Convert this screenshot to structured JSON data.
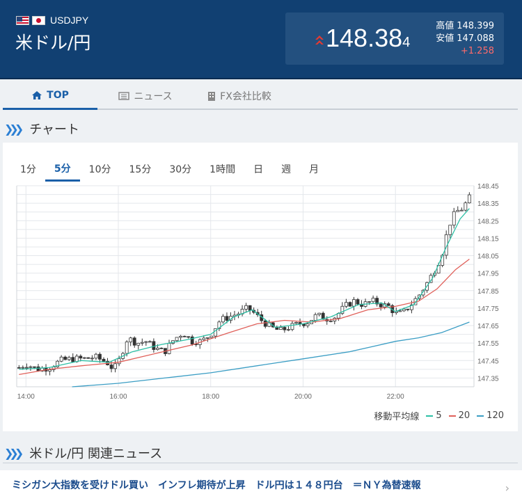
{
  "header": {
    "pair_code": "USDJPY",
    "pair_name": "米ドル/円",
    "price_main": "148.38",
    "price_last_digit": "4",
    "high_label": "高値",
    "high_value": "148.399",
    "low_label": "安値",
    "low_value": "147.088",
    "change": "+1.258",
    "colors": {
      "header_bg": "#114072",
      "box_bg": "#23507f",
      "up": "#e8392f",
      "change": "#ff6b6b"
    }
  },
  "tabs": [
    {
      "label": "TOP",
      "icon": "home-icon",
      "active": true
    },
    {
      "label": "ニュース",
      "icon": "newspaper-icon",
      "active": false
    },
    {
      "label": "FX会社比較",
      "icon": "building-icon",
      "active": false
    }
  ],
  "chart_section": {
    "title": "チャート"
  },
  "periods": [
    "1分",
    "5分",
    "10分",
    "15分",
    "30分",
    "1時間",
    "日",
    "週",
    "月"
  ],
  "active_period": "5分",
  "ma_legend": {
    "label": "移動平均線",
    "items": [
      {
        "name": "5",
        "color": "#2bbfa4"
      },
      {
        "name": "20",
        "color": "#e0605a"
      },
      {
        "name": "120",
        "color": "#3a9dc4"
      }
    ]
  },
  "news_section": {
    "title": "米ドル/円 関連ニュース"
  },
  "news": [
    {
      "headline": "ミシガン大指数を受けドル買い　インフレ期待が上昇　ドル円は１４８円台　＝ＮＹ為替速報"
    }
  ],
  "chart_data": {
    "type": "candlestick",
    "x_ticks": [
      "14:00",
      "16:00",
      "18:00",
      "20:00",
      "22:00"
    ],
    "x_tick_hours": [
      14,
      16,
      18,
      20,
      22
    ],
    "x_range_hours": [
      13.8,
      23.7
    ],
    "y_ticks": [
      "148.45",
      "148.35",
      "148.25",
      "148.15",
      "148.05",
      "147.95",
      "147.85",
      "147.75",
      "147.65",
      "147.55",
      "147.45",
      "147.35"
    ],
    "ylim": [
      147.3,
      148.45
    ],
    "grid": true,
    "candle_close_path": [
      [
        13.85,
        147.41
      ],
      [
        14.0,
        147.43
      ],
      [
        14.25,
        147.4
      ],
      [
        14.5,
        147.41
      ],
      [
        14.75,
        147.45
      ],
      [
        15.0,
        147.46
      ],
      [
        15.25,
        147.46
      ],
      [
        15.5,
        147.47
      ],
      [
        15.75,
        147.44
      ],
      [
        15.9,
        147.4
      ],
      [
        16.0,
        147.44
      ],
      [
        16.2,
        147.58
      ],
      [
        16.4,
        147.55
      ],
      [
        16.6,
        147.56
      ],
      [
        16.8,
        147.52
      ],
      [
        17.0,
        147.5
      ],
      [
        17.2,
        147.57
      ],
      [
        17.4,
        147.61
      ],
      [
        17.6,
        147.56
      ],
      [
        17.8,
        147.56
      ],
      [
        18.0,
        147.6
      ],
      [
        18.2,
        147.68
      ],
      [
        18.4,
        147.7
      ],
      [
        18.6,
        147.72
      ],
      [
        18.8,
        147.75
      ],
      [
        18.95,
        147.72
      ],
      [
        19.1,
        147.68
      ],
      [
        19.3,
        147.64
      ],
      [
        19.5,
        147.62
      ],
      [
        19.7,
        147.64
      ],
      [
        19.9,
        147.66
      ],
      [
        20.1,
        147.67
      ],
      [
        20.3,
        147.71
      ],
      [
        20.5,
        147.69
      ],
      [
        20.7,
        147.7
      ],
      [
        20.9,
        147.76
      ],
      [
        21.1,
        147.79
      ],
      [
        21.3,
        147.77
      ],
      [
        21.5,
        147.79
      ],
      [
        21.7,
        147.77
      ],
      [
        21.85,
        147.76
      ],
      [
        22.0,
        147.72
      ],
      [
        22.15,
        147.72
      ],
      [
        22.3,
        147.76
      ],
      [
        22.5,
        147.82
      ],
      [
        22.7,
        147.9
      ],
      [
        22.85,
        147.97
      ],
      [
        23.0,
        148.05
      ],
      [
        23.15,
        148.22
      ],
      [
        23.3,
        148.3
      ],
      [
        23.45,
        148.32
      ],
      [
        23.6,
        148.38
      ]
    ],
    "ma5": [
      [
        13.85,
        147.4
      ],
      [
        14.5,
        147.41
      ],
      [
        15.2,
        147.45
      ],
      [
        15.8,
        147.44
      ],
      [
        16.3,
        147.5
      ],
      [
        16.9,
        147.54
      ],
      [
        17.5,
        147.57
      ],
      [
        18.0,
        147.6
      ],
      [
        18.5,
        147.7
      ],
      [
        18.9,
        147.74
      ],
      [
        19.4,
        147.64
      ],
      [
        20.0,
        147.66
      ],
      [
        20.6,
        147.7
      ],
      [
        21.2,
        147.77
      ],
      [
        21.7,
        147.78
      ],
      [
        22.0,
        147.73
      ],
      [
        22.4,
        147.77
      ],
      [
        22.8,
        147.92
      ],
      [
        23.1,
        148.1
      ],
      [
        23.4,
        148.26
      ],
      [
        23.6,
        148.32
      ]
    ],
    "ma20": [
      [
        13.85,
        147.37
      ],
      [
        14.5,
        147.4
      ],
      [
        15.2,
        147.42
      ],
      [
        16.0,
        147.44
      ],
      [
        16.8,
        147.49
      ],
      [
        17.6,
        147.54
      ],
      [
        18.4,
        147.61
      ],
      [
        19.0,
        147.66
      ],
      [
        19.6,
        147.68
      ],
      [
        20.2,
        147.67
      ],
      [
        20.8,
        147.69
      ],
      [
        21.4,
        147.74
      ],
      [
        22.0,
        147.76
      ],
      [
        22.5,
        147.79
      ],
      [
        22.9,
        147.86
      ],
      [
        23.3,
        147.97
      ],
      [
        23.6,
        148.03
      ]
    ],
    "ma120": [
      [
        15.0,
        147.3
      ],
      [
        16.0,
        147.32
      ],
      [
        17.0,
        147.35
      ],
      [
        18.0,
        147.38
      ],
      [
        19.0,
        147.42
      ],
      [
        20.0,
        147.46
      ],
      [
        21.0,
        147.5
      ],
      [
        21.5,
        147.53
      ],
      [
        22.0,
        147.56
      ],
      [
        22.5,
        147.58
      ],
      [
        23.0,
        147.61
      ],
      [
        23.6,
        147.67
      ]
    ]
  }
}
